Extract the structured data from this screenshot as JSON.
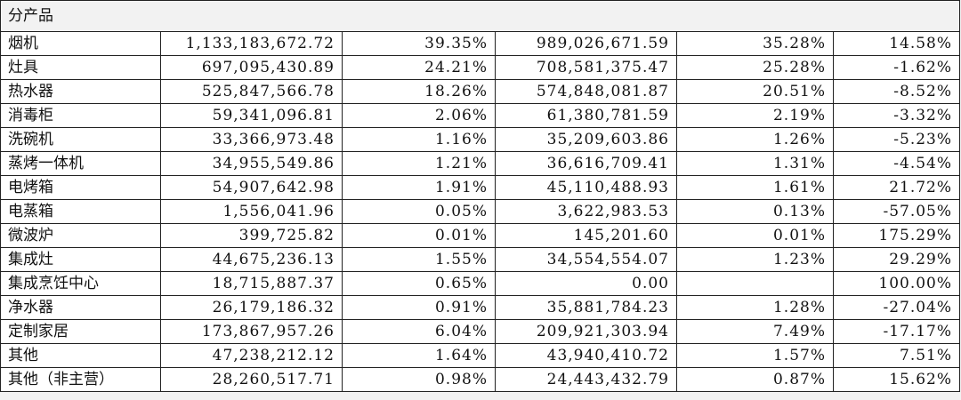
{
  "header": {
    "title": "分产品"
  },
  "table": {
    "rows": [
      [
        "烟机",
        "1,133,183,672.72",
        "39.35%",
        "989,026,671.59",
        "35.28%",
        "14.58%"
      ],
      [
        "灶具",
        "697,095,430.89",
        "24.21%",
        "708,581,375.47",
        "25.28%",
        "-1.62%"
      ],
      [
        "热水器",
        "525,847,566.78",
        "18.26%",
        "574,848,081.87",
        "20.51%",
        "-8.52%"
      ],
      [
        "消毒柜",
        "59,341,096.81",
        "2.06%",
        "61,380,781.59",
        "2.19%",
        "-3.32%"
      ],
      [
        "洗碗机",
        "33,366,973.48",
        "1.16%",
        "35,209,603.86",
        "1.26%",
        "-5.23%"
      ],
      [
        "蒸烤一体机",
        "34,955,549.86",
        "1.21%",
        "36,616,709.41",
        "1.31%",
        "-4.54%"
      ],
      [
        "电烤箱",
        "54,907,642.98",
        "1.91%",
        "45,110,488.93",
        "1.61%",
        "21.72%"
      ],
      [
        "电蒸箱",
        "1,556,041.96",
        "0.05%",
        "3,622,983.53",
        "0.13%",
        "-57.05%"
      ],
      [
        "微波炉",
        "399,725.82",
        "0.01%",
        "145,201.60",
        "0.01%",
        "175.29%"
      ],
      [
        "集成灶",
        "44,675,236.13",
        "1.55%",
        "34,554,554.07",
        "1.23%",
        "29.29%"
      ],
      [
        "集成烹饪中心",
        "18,715,887.37",
        "0.65%",
        "0.00",
        null,
        "100.00%"
      ],
      [
        "净水器",
        "26,179,186.32",
        "0.91%",
        "35,881,784.23",
        "1.28%",
        "-27.04%"
      ],
      [
        "定制家居",
        "173,867,957.26",
        "6.04%",
        "209,921,303.94",
        "7.49%",
        "-17.17%"
      ],
      [
        "其他",
        "47,238,212.12",
        "1.64%",
        "43,940,410.72",
        "1.57%",
        "7.51%"
      ],
      [
        "其他（非主营）",
        "28,260,517.71",
        "0.98%",
        "24,443,432.79",
        "0.87%",
        "15.62%"
      ]
    ]
  }
}
